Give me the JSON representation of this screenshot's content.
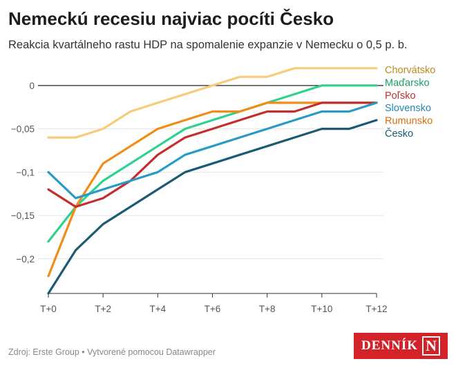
{
  "header": {
    "title": "Nemeckú recesiu najviac pocíti Česko",
    "subtitle": "Reakcia kvartálneho rastu HDP na spomalenie expanzie v Nemecku o 0,5 p. b."
  },
  "footer": {
    "source": "Zdroj: Erste Group • Vytvorené pomocou Datawrapper"
  },
  "logo": {
    "text": "DENNÍK",
    "mark": "N",
    "color": "#d2232a"
  },
  "chart_data": {
    "type": "line",
    "x": [
      0,
      1,
      2,
      3,
      4,
      5,
      6,
      7,
      8,
      9,
      10,
      11,
      12
    ],
    "x_ticks": [
      {
        "value": 0,
        "label": "T+0"
      },
      {
        "value": 2,
        "label": "T+2"
      },
      {
        "value": 4,
        "label": "T+4"
      },
      {
        "value": 6,
        "label": "T+6"
      },
      {
        "value": 8,
        "label": "T+8"
      },
      {
        "value": 10,
        "label": "T+10"
      },
      {
        "value": 12,
        "label": "T+12"
      }
    ],
    "ylim": [
      -0.24,
      0.02
    ],
    "y_ticks": [
      {
        "value": 0,
        "label": "0"
      },
      {
        "value": -0.05,
        "label": "−0,05"
      },
      {
        "value": -0.1,
        "label": "−0,1"
      },
      {
        "value": -0.15,
        "label": "−0,15"
      },
      {
        "value": -0.2,
        "label": "−0,2"
      }
    ],
    "grid": true,
    "legend": "right, labels at line ends",
    "series": [
      {
        "name": "Chorvátsko",
        "color": "#f7cb7a",
        "label_color": "#c08a1a",
        "values": [
          -0.06,
          -0.06,
          -0.05,
          -0.03,
          -0.02,
          -0.01,
          0.0,
          0.01,
          0.01,
          0.02,
          0.02,
          0.02,
          0.02
        ]
      },
      {
        "name": "Maďarsko",
        "color": "#2fd18f",
        "label_color": "#1d9a66",
        "values": [
          -0.18,
          -0.14,
          -0.11,
          -0.09,
          -0.07,
          -0.05,
          -0.04,
          -0.03,
          -0.02,
          -0.01,
          0.0,
          0.0,
          0.0
        ]
      },
      {
        "name": "Rumunsko",
        "color": "#f08d12",
        "label_color": "#d2700a",
        "values": [
          -0.22,
          -0.14,
          -0.09,
          -0.07,
          -0.05,
          -0.04,
          -0.03,
          -0.03,
          -0.02,
          -0.02,
          -0.02,
          -0.02,
          -0.02
        ]
      },
      {
        "name": "Poľsko",
        "color": "#c42d2d",
        "label_color": "#c42d2d",
        "values": [
          -0.12,
          -0.14,
          -0.13,
          -0.11,
          -0.08,
          -0.06,
          -0.05,
          -0.04,
          -0.03,
          -0.03,
          -0.02,
          -0.02,
          -0.02
        ]
      },
      {
        "name": "Slovensko",
        "color": "#259bc6",
        "label_color": "#1f8ab5",
        "values": [
          -0.1,
          -0.13,
          -0.12,
          -0.11,
          -0.1,
          -0.08,
          -0.07,
          -0.06,
          -0.05,
          -0.04,
          -0.03,
          -0.03,
          -0.02
        ]
      },
      {
        "name": "Česko",
        "color": "#1a5a74",
        "label_color": "#1a5a74",
        "values": [
          -0.24,
          -0.19,
          -0.16,
          -0.14,
          -0.12,
          -0.1,
          -0.09,
          -0.08,
          -0.07,
          -0.06,
          -0.05,
          -0.05,
          -0.04
        ]
      }
    ],
    "label_order": [
      "Chorvátsko",
      "Maďarsko",
      "Poľsko",
      "Slovensko",
      "Rumunsko",
      "Česko"
    ]
  }
}
